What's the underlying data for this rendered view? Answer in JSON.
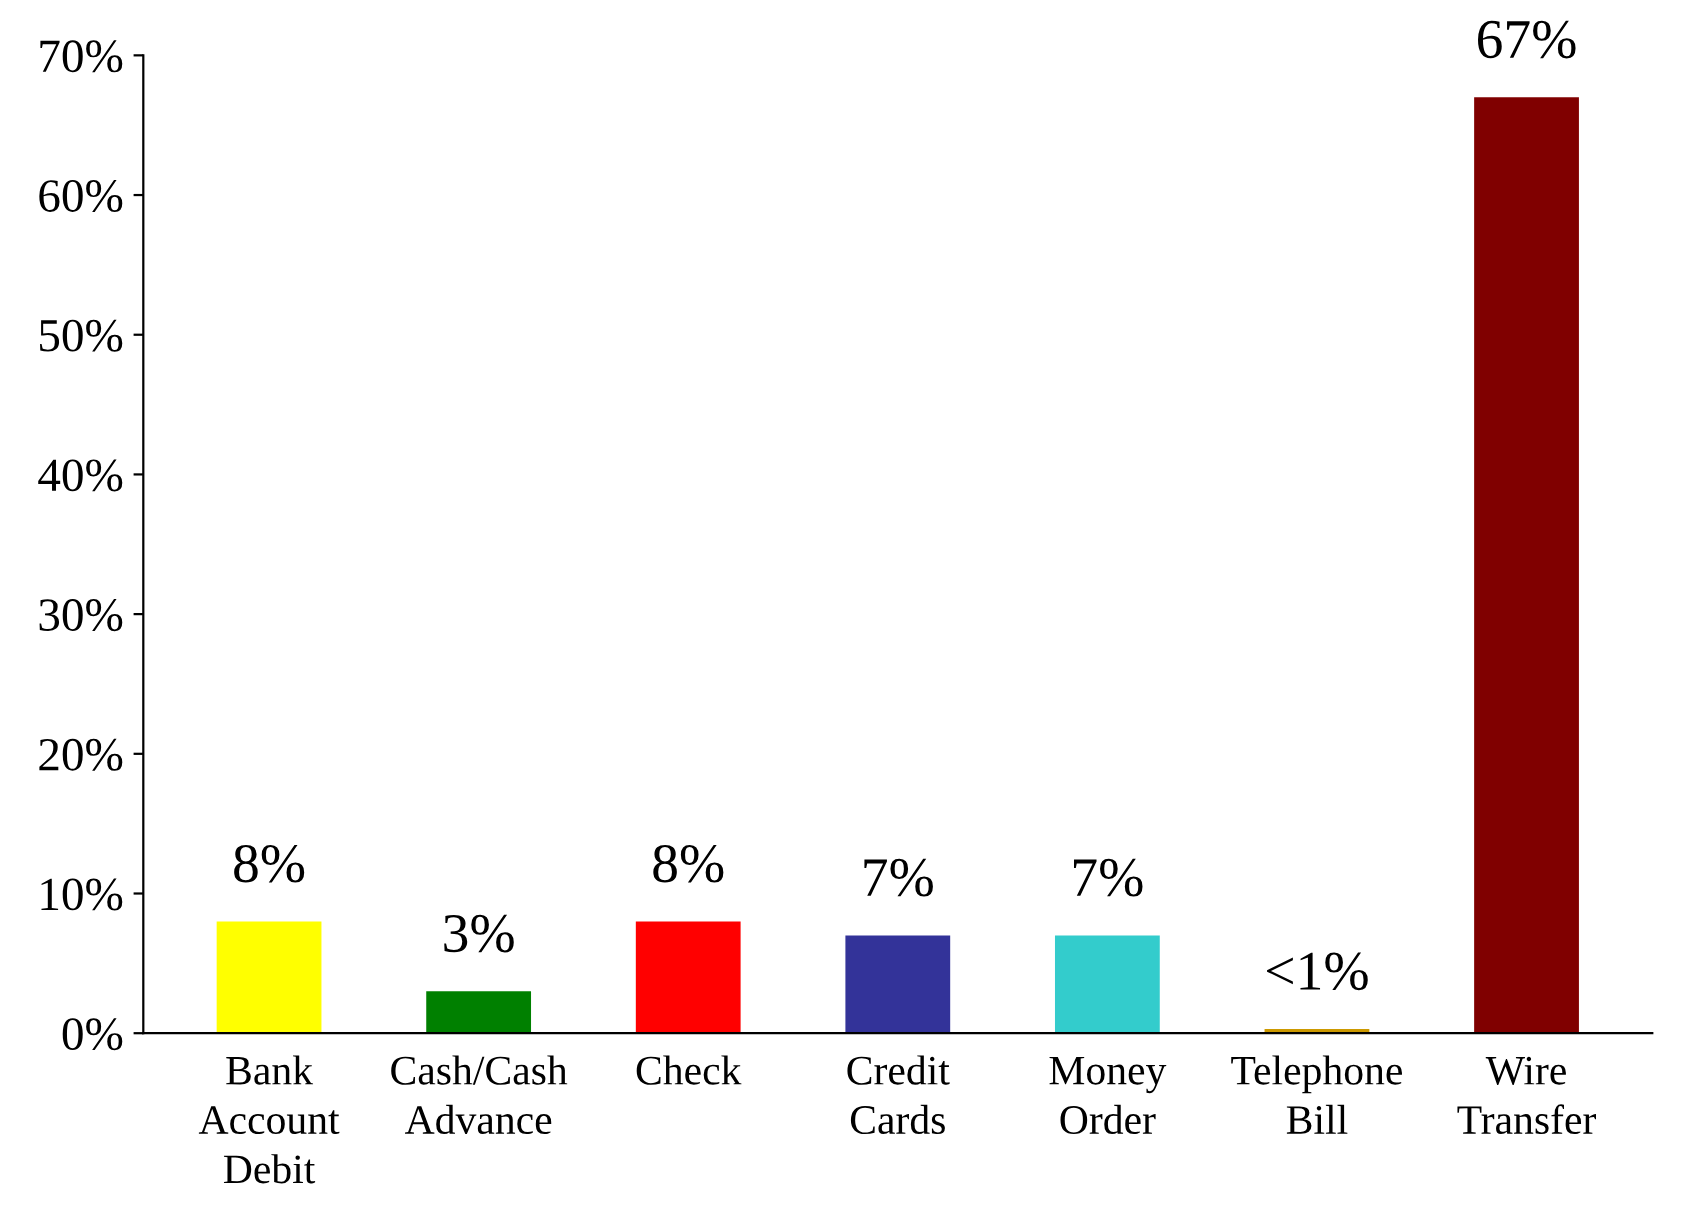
{
  "chart_data": {
    "type": "bar",
    "categories": [
      "Bank\nAccount\nDebit",
      "Cash/Cash\nAdvance",
      "Check",
      "Credit\nCards",
      "Money\nOrder",
      "Telephone\nBill",
      "Wire\nTransfer"
    ],
    "values": [
      8,
      3,
      8,
      7,
      7,
      0.3,
      67
    ],
    "value_labels": [
      "8%",
      "3%",
      "8%",
      "7%",
      "7%",
      "<1%",
      "67%"
    ],
    "colors": [
      "#ffff00",
      "#008000",
      "#ff0000",
      "#333399",
      "#33cccc",
      "#cc9900",
      "#800000"
    ],
    "ylim": [
      0,
      70
    ],
    "yticks": [
      {
        "value": 0,
        "label": "0%"
      },
      {
        "value": 10,
        "label": "10%"
      },
      {
        "value": 20,
        "label": "20%"
      },
      {
        "value": 30,
        "label": "30%"
      },
      {
        "value": 40,
        "label": "40%"
      },
      {
        "value": 50,
        "label": "50%"
      },
      {
        "value": 60,
        "label": "60%"
      },
      {
        "value": 70,
        "label": "70%"
      }
    ],
    "grid": false,
    "legend": false
  }
}
